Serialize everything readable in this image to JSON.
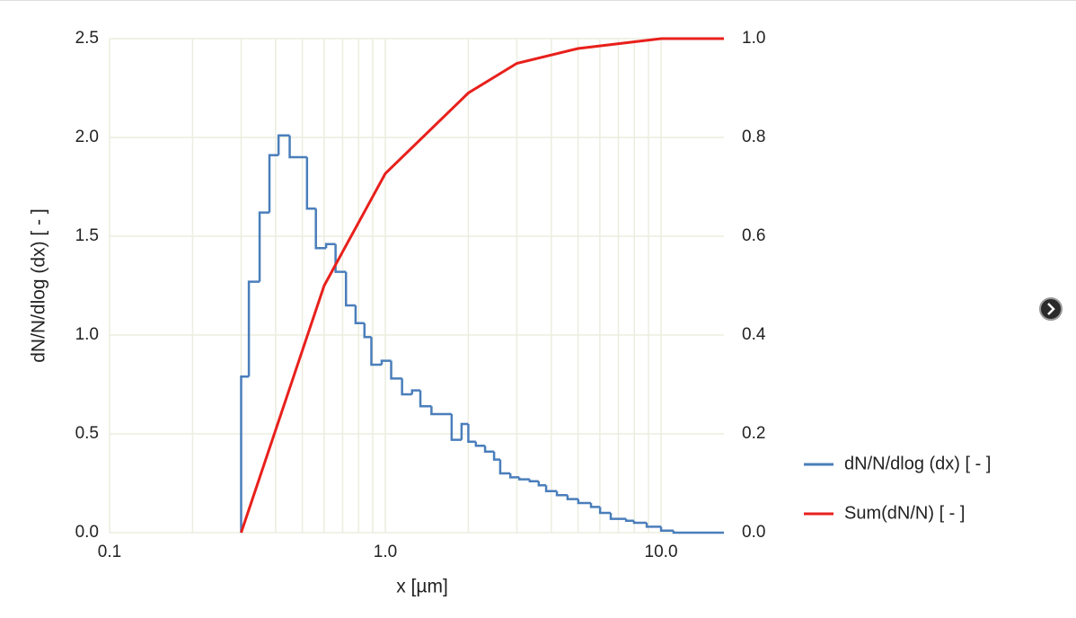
{
  "chart_data": {
    "type": "line",
    "xlabel": "x [µm]",
    "ylabel": "dN/N/dlog (dx) [ - ]",
    "xscale": "log",
    "xlim": [
      0.1,
      16.9
    ],
    "xticks": [
      0.1,
      {
        "value": 1,
        "label": "1.0"
      },
      {
        "value": 10,
        "label": "10.0"
      }
    ],
    "ylim": [
      0,
      2.5
    ],
    "yticks": [
      {
        "value": 0,
        "label": "0.0"
      },
      0.5,
      {
        "value": 1,
        "label": "1.0"
      },
      1.5,
      {
        "value": 2,
        "label": "2.0"
      },
      2.5
    ],
    "y2lim": [
      0,
      1
    ],
    "y2ticks": [
      {
        "value": 0,
        "label": "0.0"
      },
      0.2,
      0.4,
      0.6,
      0.8,
      {
        "value": 1,
        "label": "1.0"
      }
    ],
    "grid": true,
    "grid_color": "#ebeddf",
    "legend": "right",
    "series": [
      {
        "name": "dN/N/dlog (dx) [ - ]",
        "color": "#4a7ebb",
        "bins": [
          0.3,
          0.32,
          0.35,
          0.38,
          0.41,
          0.45,
          0.52,
          0.56,
          0.61,
          0.66,
          0.72,
          0.78,
          0.84,
          0.89,
          0.97,
          1.05,
          1.15,
          1.25,
          1.34,
          1.47,
          1.74,
          1.89,
          2.0,
          2.13,
          2.3,
          2.48,
          2.61,
          2.84,
          3.06,
          3.34,
          3.6,
          3.83,
          4.19,
          4.58,
          5.01,
          5.57,
          6.01,
          6.57,
          7.47,
          7.98,
          8.87,
          10.0,
          11.1,
          16.9
        ],
        "values": [
          0.79,
          1.27,
          1.62,
          1.91,
          2.01,
          1.9,
          1.64,
          1.44,
          1.46,
          1.32,
          1.15,
          1.06,
          0.99,
          0.85,
          0.87,
          0.78,
          0.7,
          0.72,
          0.64,
          0.6,
          0.47,
          0.55,
          0.46,
          0.44,
          0.41,
          0.37,
          0.3,
          0.28,
          0.27,
          0.26,
          0.24,
          0.21,
          0.19,
          0.17,
          0.15,
          0.13,
          0.1,
          0.07,
          0.06,
          0.05,
          0.03,
          0.01,
          0.0
        ]
      },
      {
        "name": "Sum(dN/N) [ - ]",
        "color": "#e8201c",
        "axis": "y2",
        "x": [
          0.3,
          0.6,
          1.0,
          2.0,
          3.0,
          5.0,
          10.0,
          16.9
        ],
        "values": [
          0,
          0.5,
          0.727,
          0.89,
          0.95,
          0.98,
          1.0,
          1.0
        ]
      }
    ]
  }
}
